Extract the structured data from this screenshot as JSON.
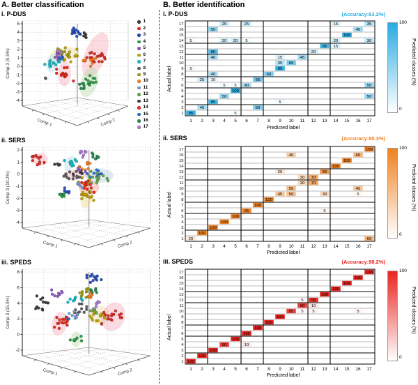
{
  "panel_a": {
    "title": "A. Better classification",
    "legend_items": [
      "1",
      "2",
      "3",
      "4",
      "5",
      "6",
      "7",
      "8",
      "9",
      "10",
      "11",
      "12",
      "13",
      "14",
      "15",
      "16",
      "17"
    ]
  },
  "panel_b": {
    "title": "B. Better identification",
    "xlabel": "Predicted label",
    "ylabel": "Actual label",
    "colorbar": {
      "label": "Predicted classes (%)",
      "max": "100",
      "min": "0"
    }
  },
  "class_colors": [
    "#3b3b3b",
    "#e8291c",
    "#2a52be",
    "#2e9e43",
    "#8f5bbd",
    "#bfa30f",
    "#18b9c9",
    "#5f5f5f",
    "#9fa018",
    "#f5821f",
    "#7b9bd2",
    "#6aa84f",
    "#404040",
    "#d93025",
    "#2e6fce",
    "#2e8b57",
    "#a97fd4"
  ],
  "chart_data": {
    "heatmaps": [
      {
        "type": "heatmap",
        "title": "i. P-DUS",
        "accuracy_label": "(Accuracy:63.2%)",
        "accent": "#29abe2",
        "xlabel": "Predicted label",
        "ylabel": "Actual label",
        "labels": [
          1,
          2,
          3,
          4,
          5,
          6,
          7,
          8,
          9,
          10,
          11,
          12,
          13,
          14,
          15,
          16,
          17
        ],
        "group_bounds": [
          2,
          5,
          7,
          11,
          13
        ],
        "cells": [
          [
            1,
            1,
            95
          ],
          [
            1,
            5,
            5
          ],
          [
            2,
            2,
            40
          ],
          [
            2,
            7,
            60
          ],
          [
            3,
            3,
            85
          ],
          [
            3,
            9,
            5
          ],
          [
            4,
            4,
            50
          ],
          [
            4,
            17,
            50
          ],
          [
            5,
            5,
            100
          ],
          [
            6,
            4,
            5
          ],
          [
            6,
            5,
            5
          ],
          [
            6,
            6,
            40
          ],
          [
            6,
            17,
            50
          ],
          [
            7,
            2,
            25
          ],
          [
            7,
            3,
            10
          ],
          [
            7,
            7,
            65
          ],
          [
            8,
            3,
            40
          ],
          [
            8,
            8,
            60
          ],
          [
            9,
            1,
            5
          ],
          [
            9,
            9,
            95
          ],
          [
            10,
            9,
            35
          ],
          [
            10,
            10,
            65
          ],
          [
            11,
            3,
            40
          ],
          [
            11,
            9,
            15
          ],
          [
            11,
            11,
            45
          ],
          [
            12,
            3,
            80
          ],
          [
            12,
            12,
            20
          ],
          [
            13,
            13,
            85
          ],
          [
            13,
            14,
            15
          ],
          [
            14,
            1,
            5
          ],
          [
            14,
            4,
            20
          ],
          [
            14,
            5,
            20
          ],
          [
            14,
            6,
            5
          ],
          [
            14,
            14,
            20
          ],
          [
            14,
            17,
            30
          ],
          [
            15,
            15,
            100
          ],
          [
            16,
            3,
            55
          ],
          [
            16,
            16,
            45
          ],
          [
            17,
            4,
            25
          ],
          [
            17,
            6,
            25
          ],
          [
            17,
            14,
            15
          ],
          [
            17,
            17,
            35
          ]
        ]
      },
      {
        "type": "heatmap",
        "title": "ii. SERS",
        "accuracy_label": "(Accuracy:80.3%)",
        "accent": "#f08121",
        "xlabel": "Predicted label",
        "ylabel": "Actual label",
        "labels": [
          1,
          2,
          3,
          4,
          5,
          6,
          7,
          8,
          9,
          10,
          11,
          12,
          13,
          14,
          15,
          16,
          17
        ],
        "group_bounds": [
          2,
          5,
          7,
          11,
          13
        ],
        "cells": [
          [
            1,
            1,
            20
          ],
          [
            1,
            17,
            60
          ],
          [
            2,
            2,
            100
          ],
          [
            3,
            3,
            100
          ],
          [
            4,
            4,
            100
          ],
          [
            5,
            5,
            100
          ],
          [
            6,
            6,
            95
          ],
          [
            6,
            13,
            5
          ],
          [
            7,
            7,
            100
          ],
          [
            8,
            8,
            100
          ],
          [
            9,
            9,
            45
          ],
          [
            9,
            10,
            50
          ],
          [
            9,
            13,
            30
          ],
          [
            9,
            16,
            5
          ],
          [
            10,
            10,
            55
          ],
          [
            10,
            16,
            45
          ],
          [
            11,
            11,
            30
          ],
          [
            11,
            12,
            70
          ],
          [
            12,
            11,
            30
          ],
          [
            12,
            12,
            70
          ],
          [
            13,
            9,
            20
          ],
          [
            13,
            13,
            80
          ],
          [
            14,
            14,
            100
          ],
          [
            15,
            15,
            100
          ],
          [
            16,
            10,
            40
          ],
          [
            16,
            16,
            60
          ],
          [
            17,
            17,
            100
          ]
        ]
      },
      {
        "type": "heatmap",
        "title": "iii. SPEDS",
        "accuracy_label": "(Accuracy:98.2%)",
        "accent": "#e8251f",
        "xlabel": "Predicted label",
        "ylabel": "Actual label",
        "labels": [
          1,
          2,
          3,
          4,
          5,
          6,
          7,
          8,
          9,
          10,
          11,
          12,
          13,
          14,
          15,
          16,
          17
        ],
        "group_bounds": [
          2,
          5,
          7,
          11,
          13
        ],
        "cells": [
          [
            1,
            1,
            100
          ],
          [
            2,
            2,
            100
          ],
          [
            3,
            3,
            100
          ],
          [
            4,
            4,
            90
          ],
          [
            4,
            6,
            10
          ],
          [
            5,
            5,
            100
          ],
          [
            6,
            6,
            100
          ],
          [
            7,
            7,
            100
          ],
          [
            8,
            8,
            100
          ],
          [
            9,
            9,
            100
          ],
          [
            10,
            10,
            85
          ],
          [
            10,
            11,
            5
          ],
          [
            10,
            12,
            5
          ],
          [
            10,
            16,
            5
          ],
          [
            11,
            11,
            90
          ],
          [
            11,
            12,
            10
          ],
          [
            12,
            11,
            5
          ],
          [
            12,
            12,
            95
          ],
          [
            13,
            13,
            100
          ],
          [
            14,
            14,
            100
          ],
          [
            15,
            15,
            100
          ],
          [
            16,
            16,
            100
          ],
          [
            17,
            17,
            100
          ]
        ]
      }
    ],
    "scatter3d": [
      {
        "type": "scatter",
        "title": "i. P-DUS",
        "zlabel": "Comp 3 (5.5%)",
        "xlabel": "Comp 1",
        "ylabel": "Comp 2",
        "zticks": [
          "5",
          "4",
          "3",
          "2",
          "1",
          "0",
          "-1",
          "-2",
          "-3",
          "-4"
        ],
        "ellipses": [
          {
            "x": 0.69,
            "y": 0.4,
            "rx": 0.1,
            "ry": 0.28,
            "rot": 22,
            "fill": "#f5a3b3"
          },
          {
            "x": 0.63,
            "y": 0.72,
            "rx": 0.08,
            "ry": 0.18,
            "rot": 18,
            "fill": "#b5d9a8"
          },
          {
            "x": 0.4,
            "y": 0.39,
            "rx": 0.14,
            "ry": 0.08,
            "rot": -8,
            "fill": "#e6d79a"
          },
          {
            "x": 0.4,
            "y": 0.62,
            "rx": 0.06,
            "ry": 0.15,
            "rot": 3,
            "fill": "#f5a3b3"
          },
          {
            "x": 0.28,
            "y": 0.5,
            "rx": 0.05,
            "ry": 0.11,
            "rot": 8,
            "fill": "#a8dde0"
          }
        ],
        "clusters": [
          {
            "c": 3,
            "x": 0.5,
            "y": 0.13,
            "n": 12,
            "s": 0.035
          },
          {
            "c": 1,
            "x": 0.6,
            "y": 0.17,
            "n": 4,
            "s": 0.02
          },
          {
            "c": 6,
            "x": 0.42,
            "y": 0.4,
            "n": 16,
            "s": 0.05
          },
          {
            "c": 9,
            "x": 0.37,
            "y": 0.36,
            "n": 10,
            "s": 0.04
          },
          {
            "c": 5,
            "x": 0.33,
            "y": 0.42,
            "n": 6,
            "s": 0.025
          },
          {
            "c": 7,
            "x": 0.28,
            "y": 0.5,
            "n": 12,
            "s": 0.035
          },
          {
            "c": 15,
            "x": 0.38,
            "y": 0.45,
            "n": 5,
            "s": 0.02
          },
          {
            "c": 8,
            "x": 0.22,
            "y": 0.68,
            "n": 2,
            "s": 0.012
          },
          {
            "c": 2,
            "x": 0.4,
            "y": 0.62,
            "n": 16,
            "s": 0.045
          },
          {
            "c": 14,
            "x": 0.68,
            "y": 0.42,
            "n": 18,
            "s": 0.06
          },
          {
            "c": 10,
            "x": 0.62,
            "y": 0.5,
            "n": 8,
            "s": 0.04
          },
          {
            "c": 17,
            "x": 0.35,
            "y": 0.38,
            "n": 4,
            "s": 0.02
          },
          {
            "c": 4,
            "x": 0.64,
            "y": 0.72,
            "n": 12,
            "s": 0.045
          },
          {
            "c": 16,
            "x": 0.58,
            "y": 0.78,
            "n": 6,
            "s": 0.03
          }
        ]
      },
      {
        "type": "scatter",
        "title": "ii. SERS",
        "zlabel": "Comp 3 (10.2%)",
        "xlabel": "Comp 1",
        "ylabel": "Comp 2",
        "zticks": [
          "2",
          "1",
          "0",
          "-1",
          "-2",
          "-3",
          "-4"
        ],
        "ellipses": [
          {
            "x": 0.14,
            "y": 0.15,
            "rx": 0.06,
            "ry": 0.08,
            "rot": 0,
            "fill": "#f5a3b3"
          },
          {
            "x": 0.37,
            "y": 0.2,
            "rx": 0.035,
            "ry": 0.1,
            "rot": 25,
            "fill": "#a8dde0"
          },
          {
            "x": 0.41,
            "y": 0.34,
            "rx": 0.09,
            "ry": 0.06,
            "rot": 0,
            "fill": "#f5a3b3"
          },
          {
            "x": 0.6,
            "y": 0.35,
            "rx": 0.11,
            "ry": 0.09,
            "rot": 0,
            "fill": "#aecbe8"
          },
          {
            "x": 0.52,
            "y": 0.5,
            "rx": 0.08,
            "ry": 0.09,
            "rot": 0,
            "fill": "#f09090"
          },
          {
            "x": 0.5,
            "y": 0.62,
            "rx": 0.045,
            "ry": 0.14,
            "rot": 8,
            "fill": "#ead77f"
          }
        ],
        "clusters": [
          {
            "c": 14,
            "x": 0.14,
            "y": 0.15,
            "n": 12,
            "s": 0.04
          },
          {
            "c": 13,
            "x": 0.28,
            "y": 0.22,
            "n": 4,
            "s": 0.02
          },
          {
            "c": 7,
            "x": 0.37,
            "y": 0.2,
            "n": 12,
            "s": 0.033
          },
          {
            "c": 17,
            "x": 0.48,
            "y": 0.08,
            "n": 8,
            "s": 0.028
          },
          {
            "c": 16,
            "x": 0.55,
            "y": 0.12,
            "n": 8,
            "s": 0.028
          },
          {
            "c": 10,
            "x": 0.48,
            "y": 0.23,
            "n": 8,
            "s": 0.03
          },
          {
            "c": 8,
            "x": 0.4,
            "y": 0.35,
            "n": 12,
            "s": 0.04
          },
          {
            "c": 1,
            "x": 0.44,
            "y": 0.32,
            "n": 4,
            "s": 0.02
          },
          {
            "c": 15,
            "x": 0.56,
            "y": 0.33,
            "n": 10,
            "s": 0.035
          },
          {
            "c": 12,
            "x": 0.6,
            "y": 0.37,
            "n": 14,
            "s": 0.045
          },
          {
            "c": 5,
            "x": 0.45,
            "y": 0.28,
            "n": 4,
            "s": 0.02
          },
          {
            "c": 9,
            "x": 0.48,
            "y": 0.42,
            "n": 6,
            "s": 0.025
          },
          {
            "c": 2,
            "x": 0.52,
            "y": 0.5,
            "n": 14,
            "s": 0.04
          },
          {
            "c": 6,
            "x": 0.5,
            "y": 0.6,
            "n": 12,
            "s": 0.035
          },
          {
            "c": 3,
            "x": 0.35,
            "y": 0.55,
            "n": 8,
            "s": 0.03
          },
          {
            "c": 4,
            "x": 0.31,
            "y": 0.6,
            "n": 6,
            "s": 0.025
          },
          {
            "c": 11,
            "x": 0.46,
            "y": 0.47,
            "n": 5,
            "s": 0.02
          }
        ]
      },
      {
        "type": "scatter",
        "title": "iii. SPEDS",
        "zlabel": "Comp 3 (15.9%)",
        "xlabel": "Comp 1",
        "ylabel": "Comp 2",
        "zticks": [
          "8",
          "6",
          "4",
          "2",
          "0",
          "-2"
        ],
        "ellipses": [
          {
            "x": 0.29,
            "y": 0.63,
            "rx": 0.06,
            "ry": 0.14,
            "rot": 15,
            "fill": "#f5a3b3"
          },
          {
            "x": 0.6,
            "y": 0.53,
            "rx": 0.08,
            "ry": 0.11,
            "rot": 10,
            "fill": "#e6d79a"
          },
          {
            "x": 0.71,
            "y": 0.55,
            "rx": 0.09,
            "ry": 0.17,
            "rot": 22,
            "fill": "#f5a3b3"
          },
          {
            "x": 0.42,
            "y": 0.81,
            "rx": 0.04,
            "ry": 0.09,
            "rot": 0,
            "fill": "#b5d9a8"
          }
        ],
        "clusters": [
          {
            "c": 3,
            "x": 0.55,
            "y": 0.1,
            "n": 12,
            "s": 0.035
          },
          {
            "c": 1,
            "x": 0.16,
            "y": 0.36,
            "n": 6,
            "s": 0.028
          },
          {
            "c": 5,
            "x": 0.28,
            "y": 0.28,
            "n": 8,
            "s": 0.03
          },
          {
            "c": 13,
            "x": 0.12,
            "y": 0.46,
            "n": 5,
            "s": 0.02
          },
          {
            "c": 9,
            "x": 0.5,
            "y": 0.27,
            "n": 12,
            "s": 0.04
          },
          {
            "c": 16,
            "x": 0.57,
            "y": 0.24,
            "n": 6,
            "s": 0.025
          },
          {
            "c": 10,
            "x": 0.53,
            "y": 0.31,
            "n": 5,
            "s": 0.02
          },
          {
            "c": 7,
            "x": 0.41,
            "y": 0.37,
            "n": 8,
            "s": 0.03
          },
          {
            "c": 8,
            "x": 0.47,
            "y": 0.46,
            "n": 10,
            "s": 0.035
          },
          {
            "c": 17,
            "x": 0.58,
            "y": 0.42,
            "n": 6,
            "s": 0.025
          },
          {
            "c": 11,
            "x": 0.4,
            "y": 0.52,
            "n": 8,
            "s": 0.03
          },
          {
            "c": 15,
            "x": 0.36,
            "y": 0.56,
            "n": 4,
            "s": 0.02
          },
          {
            "c": 2,
            "x": 0.29,
            "y": 0.62,
            "n": 14,
            "s": 0.04
          },
          {
            "c": 6,
            "x": 0.6,
            "y": 0.56,
            "n": 14,
            "s": 0.045
          },
          {
            "c": 14,
            "x": 0.71,
            "y": 0.55,
            "n": 16,
            "s": 0.05
          },
          {
            "c": 12,
            "x": 0.55,
            "y": 0.5,
            "n": 5,
            "s": 0.02
          },
          {
            "c": 4,
            "x": 0.42,
            "y": 0.8,
            "n": 8,
            "s": 0.03
          }
        ]
      }
    ]
  }
}
